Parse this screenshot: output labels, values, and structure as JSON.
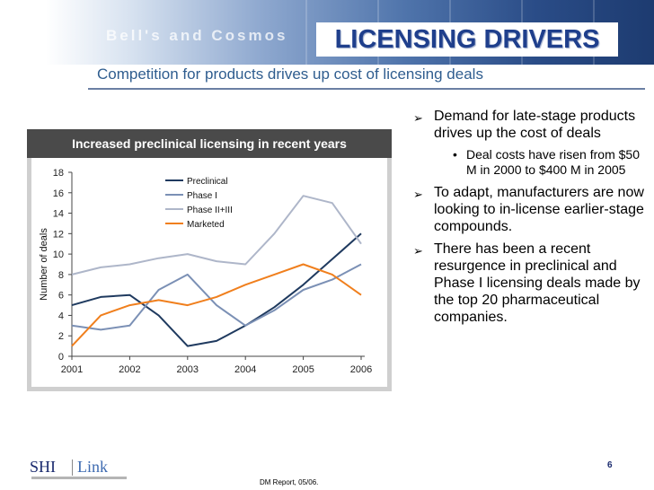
{
  "slide": {
    "title": "LICENSING DRIVERS",
    "banner_text": "Bell's and Cosmos",
    "subtitle": "Competition for products drives up cost of licensing deals",
    "page_number": "6",
    "source": "DM Report, 05/06.",
    "logo_left": "SHI",
    "logo_right": "Link"
  },
  "bullets": [
    {
      "text": "Demand for late-stage products drives up the cost of deals",
      "sub": [
        "Deal costs have risen from $50 M in 2000 to $400 M in 2005"
      ]
    },
    {
      "text": "To adapt, manufacturers are now looking to in-license earlier-stage compounds.",
      "sub": []
    },
    {
      "text": "There has been a recent resurgence in preclinical and Phase I licensing deals made by the top 20 pharmaceutical companies.",
      "sub": []
    }
  ],
  "chart_data": {
    "type": "line",
    "title": "Increased preclinical licensing in recent years",
    "xlabel": "",
    "ylabel": "Number of deals",
    "x": [
      "2001",
      "2002",
      "2003",
      "2004",
      "2005",
      "2006"
    ],
    "xlim": [
      2001,
      2006
    ],
    "ylim": [
      0,
      18
    ],
    "yticks": [
      "0",
      "2",
      "4",
      "6",
      "8",
      "10",
      "12",
      "14",
      "16",
      "18"
    ],
    "legend_position": "top-center",
    "series": [
      {
        "name": "Preclinical",
        "color": "#1f3a5f",
        "points": [
          [
            2001,
            5
          ],
          [
            2001.5,
            5.8
          ],
          [
            2002,
            6
          ],
          [
            2002.5,
            4
          ],
          [
            2003,
            1
          ],
          [
            2003.5,
            1.5
          ],
          [
            2004,
            3
          ],
          [
            2004.5,
            4.8
          ],
          [
            2005,
            7
          ],
          [
            2005.5,
            9.5
          ],
          [
            2006,
            12
          ]
        ]
      },
      {
        "name": "Phase I",
        "color": "#7b90b5",
        "points": [
          [
            2001,
            3
          ],
          [
            2001.5,
            2.6
          ],
          [
            2002,
            3
          ],
          [
            2002.5,
            6.5
          ],
          [
            2003,
            8
          ],
          [
            2003.5,
            5
          ],
          [
            2004,
            3
          ],
          [
            2004.5,
            4.5
          ],
          [
            2005,
            6.5
          ],
          [
            2005.5,
            7.5
          ],
          [
            2006,
            9
          ]
        ]
      },
      {
        "name": "Phase II+III",
        "color": "#aeb6c9",
        "points": [
          [
            2001,
            8
          ],
          [
            2001.5,
            8.7
          ],
          [
            2002,
            9
          ],
          [
            2002.5,
            9.6
          ],
          [
            2003,
            10
          ],
          [
            2003.5,
            9.3
          ],
          [
            2004,
            9
          ],
          [
            2004.5,
            12
          ],
          [
            2005,
            15.7
          ],
          [
            2005.5,
            15
          ],
          [
            2006,
            11
          ]
        ]
      },
      {
        "name": "Marketed",
        "color": "#f07f1d",
        "points": [
          [
            2001,
            1
          ],
          [
            2001.5,
            4
          ],
          [
            2002,
            5
          ],
          [
            2002.5,
            5.5
          ],
          [
            2003,
            5
          ],
          [
            2003.5,
            5.8
          ],
          [
            2004,
            7
          ],
          [
            2004.5,
            8
          ],
          [
            2005,
            9
          ],
          [
            2005.5,
            8
          ],
          [
            2006,
            6
          ]
        ]
      }
    ]
  }
}
